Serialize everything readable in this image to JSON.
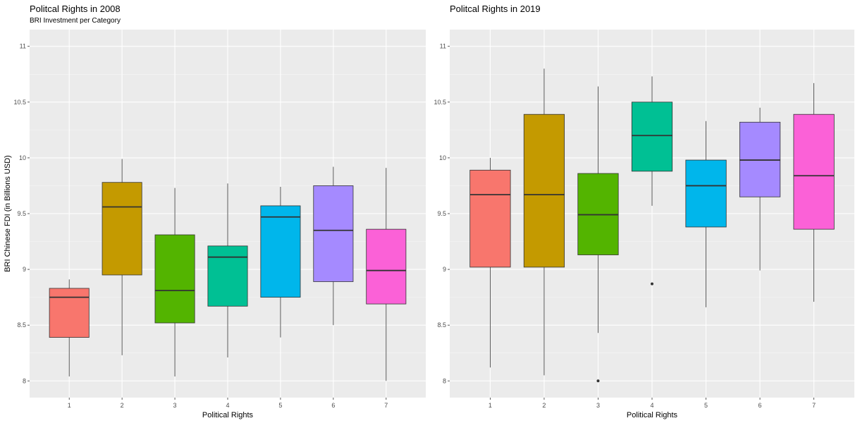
{
  "chart_data": [
    {
      "type": "boxplot",
      "title": "Politcal Rights in 2008",
      "subtitle": "BRI Investment per Category",
      "xlabel": "Political Rights",
      "ylabel": "BRI Chinese FDI (in Billions USD)",
      "ylim": [
        7.85,
        11.15
      ],
      "yticks": [
        "8",
        "8.5",
        "9",
        "9.5",
        "10",
        "10.5",
        "11"
      ],
      "grid": true,
      "categories": [
        "1",
        "2",
        "3",
        "4",
        "5",
        "6",
        "7"
      ],
      "colors": [
        "#F8766D",
        "#C49A00",
        "#53B400",
        "#00C094",
        "#00B6EB",
        "#A58AFF",
        "#FB61D7"
      ],
      "boxes": [
        {
          "min": 8.04,
          "q1": 8.39,
          "median": 8.75,
          "q3": 8.83,
          "max": 8.91,
          "outliers": []
        },
        {
          "min": 8.23,
          "q1": 8.95,
          "median": 9.56,
          "q3": 9.78,
          "max": 9.99,
          "outliers": []
        },
        {
          "min": 8.04,
          "q1": 8.52,
          "median": 8.81,
          "q3": 9.31,
          "max": 9.73,
          "outliers": []
        },
        {
          "min": 8.21,
          "q1": 8.67,
          "median": 9.11,
          "q3": 9.21,
          "max": 9.77,
          "outliers": []
        },
        {
          "min": 8.39,
          "q1": 8.75,
          "median": 9.47,
          "q3": 9.57,
          "max": 9.74,
          "outliers": []
        },
        {
          "min": 8.5,
          "q1": 8.89,
          "median": 9.35,
          "q3": 9.75,
          "max": 9.92,
          "outliers": []
        },
        {
          "min": 8.0,
          "q1": 8.69,
          "median": 8.99,
          "q3": 9.36,
          "max": 9.91,
          "outliers": []
        }
      ]
    },
    {
      "type": "boxplot",
      "title": "Politcal Rights in 2019",
      "subtitle": "",
      "xlabel": "Political Rights",
      "ylabel": "",
      "ylim": [
        7.85,
        11.15
      ],
      "yticks": [
        "8",
        "8.5",
        "9",
        "9.5",
        "10",
        "10.5",
        "11"
      ],
      "grid": true,
      "categories": [
        "1",
        "2",
        "3",
        "4",
        "5",
        "6",
        "7"
      ],
      "colors": [
        "#F8766D",
        "#C49A00",
        "#53B400",
        "#00C094",
        "#00B6EB",
        "#A58AFF",
        "#FB61D7"
      ],
      "boxes": [
        {
          "min": 8.12,
          "q1": 9.02,
          "median": 9.67,
          "q3": 9.89,
          "max": 10.0,
          "outliers": []
        },
        {
          "min": 8.05,
          "q1": 9.02,
          "median": 9.67,
          "q3": 10.39,
          "max": 10.8,
          "outliers": []
        },
        {
          "min": 8.43,
          "q1": 9.13,
          "median": 9.49,
          "q3": 9.86,
          "max": 10.64,
          "outliers": [
            8.0
          ]
        },
        {
          "min": 9.57,
          "q1": 9.88,
          "median": 10.2,
          "q3": 10.5,
          "max": 10.73,
          "outliers": [
            8.87
          ]
        },
        {
          "min": 8.66,
          "q1": 9.38,
          "median": 9.75,
          "q3": 9.98,
          "max": 10.33,
          "outliers": []
        },
        {
          "min": 8.99,
          "q1": 9.65,
          "median": 9.98,
          "q3": 10.32,
          "max": 10.45,
          "outliers": []
        },
        {
          "min": 8.71,
          "q1": 9.36,
          "median": 9.84,
          "q3": 10.39,
          "max": 10.67,
          "outliers": []
        }
      ]
    }
  ]
}
